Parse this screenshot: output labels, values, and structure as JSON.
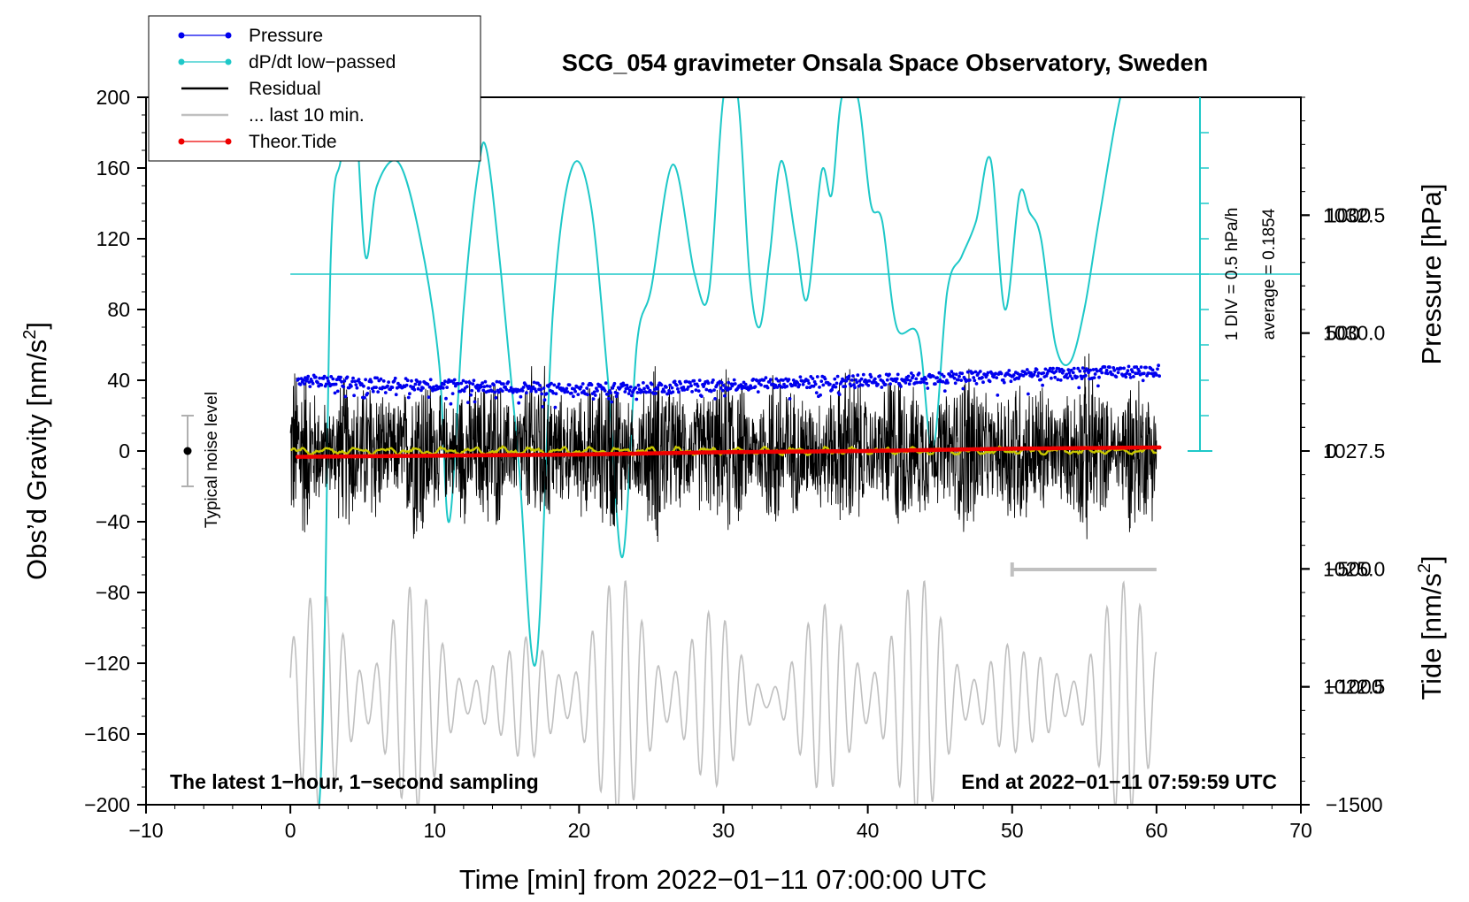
{
  "chart_data": {
    "type": "line",
    "title": "SCG_054 gravimeter Onsala Space Observatory, Sweden",
    "xlabel": "Time [min] from 2022−01−11 07:00:00 UTC",
    "ylabel_main": "Obs’d Gravity [nm/s",
    "ylabel_main_sup": "2",
    "ylabel_main_end": "]",
    "ylabel_pressure": "Pressure [hPa]",
    "ylabel_tide": "Tide [nm/s",
    "ylabel_tide_sup": "2",
    "ylabel_tide_end": "]",
    "xlim": [
      -10,
      70
    ],
    "ylim_main": [
      -200,
      200
    ],
    "ylim_pressure": [
      1020.0,
      1035.0
    ],
    "ylim_tide": [
      -1500,
      1500
    ],
    "x_ticks": [
      {
        "value": -10,
        "label": "−10"
      },
      {
        "value": 0,
        "label": "0"
      },
      {
        "value": 10,
        "label": "10"
      },
      {
        "value": 20,
        "label": "20"
      },
      {
        "value": 30,
        "label": "30"
      },
      {
        "value": 40,
        "label": "40"
      },
      {
        "value": 50,
        "label": "50"
      },
      {
        "value": 60,
        "label": "60"
      },
      {
        "value": 70,
        "label": "70"
      }
    ],
    "y_main_ticks": [
      {
        "value": 200,
        "label": "200"
      },
      {
        "value": 160,
        "label": "160"
      },
      {
        "value": 120,
        "label": "120"
      },
      {
        "value": 80,
        "label": "80"
      },
      {
        "value": 40,
        "label": "40"
      },
      {
        "value": 0,
        "label": "0"
      },
      {
        "value": -40,
        "label": "−40"
      },
      {
        "value": -80,
        "label": "−80"
      },
      {
        "value": -120,
        "label": "−120"
      },
      {
        "value": -160,
        "label": "−160"
      },
      {
        "value": -200,
        "label": "−200"
      }
    ],
    "y_pressure_ticks": [
      {
        "value": 1032.5,
        "label": "1032.5"
      },
      {
        "value": 1030.0,
        "label": "1030.0"
      },
      {
        "value": 1027.5,
        "label": "1027.5"
      },
      {
        "value": 1025.0,
        "label": "1025.0"
      },
      {
        "value": 1022.5,
        "label": "1022.5"
      }
    ],
    "y_tide_ticks": [
      {
        "value": 1000,
        "label": "1000"
      },
      {
        "value": 500,
        "label": "500"
      },
      {
        "value": 0,
        "label": "0"
      },
      {
        "value": -500,
        "label": "−500"
      },
      {
        "value": -1000,
        "label": "−1000"
      },
      {
        "value": -1500,
        "label": "−1500"
      }
    ],
    "legend": [
      {
        "label": "Pressure",
        "color": "#0000ee",
        "marker": true
      },
      {
        "label": "dP/dt low−passed",
        "color": "#1ec8c8",
        "marker": true
      },
      {
        "label": "Residual",
        "color": "#000000",
        "marker": false
      },
      {
        "label": "... last 10 min.",
        "color": "#c0c0c0",
        "marker": false
      },
      {
        "label": "Theor.Tide",
        "color": "#ee0000",
        "marker": true
      }
    ],
    "legend_position": "top-left",
    "annotations": {
      "left_note": "The latest 1−hour, 1−second sampling",
      "right_note": "End at 2022−01−11 07:59:59 UTC",
      "noise_label": "Typical noise level",
      "dpdt_scale": "1 DIV = 0.5 hPa/h",
      "dpdt_average": "average = 0.1854"
    },
    "series": [
      {
        "name": "Pressure",
        "color": "#0000ee",
        "axis": "pressure",
        "x": [
          0,
          10,
          20,
          30,
          40,
          50,
          60
        ],
        "values": [
          1029.0,
          1028.9,
          1028.8,
          1028.9,
          1029.0,
          1029.1,
          1029.2
        ]
      },
      {
        "name": "dP/dt low-passed",
        "color": "#1ec8c8",
        "axis": "main",
        "x": [
          0,
          2,
          2.8,
          3.5,
          4.4,
          5.2,
          6,
          7.5,
          9,
          10.3,
          11,
          12,
          13,
          13.6,
          14.6,
          15.8,
          17,
          18.2,
          19.5,
          20.8,
          22,
          23,
          24,
          25,
          26.5,
          28,
          29,
          30,
          31,
          31.8,
          32.5,
          33.2,
          34,
          35,
          35.8,
          36.8,
          37.5,
          38.2,
          39.3,
          40.2,
          41,
          42,
          43.5,
          44.5,
          45.5,
          46.5,
          47.5,
          48.5,
          49.5,
          50.5,
          51.2,
          52,
          53,
          54,
          55,
          56,
          57.5,
          58.2
        ],
        "values": [
          -200,
          -200,
          110,
          165,
          200,
          110,
          150,
          163,
          120,
          50,
          -40,
          80,
          158,
          170,
          100,
          -5,
          -120,
          80,
          160,
          140,
          40,
          -60,
          60,
          92,
          162,
          100,
          90,
          200,
          200,
          100,
          70,
          110,
          164,
          120,
          86,
          158,
          145,
          200,
          200,
          140,
          130,
          70,
          65,
          0,
          90,
          110,
          130,
          165,
          80,
          145,
          135,
          120,
          60,
          50,
          80,
          130,
          200,
          200
        ]
      },
      {
        "name": "Residual",
        "color": "#000000",
        "axis": "main",
        "x": [
          0,
          60
        ],
        "values": [
          0,
          0
        ],
        "amplitude": 60
      },
      {
        "name": "... last 10 min.",
        "color": "#c0c0c0",
        "axis": "main",
        "x": [
          0,
          60
        ],
        "values": [
          -140,
          -140
        ],
        "amplitude": 70
      },
      {
        "name": "Theor.Tide",
        "color": "#ee0000",
        "axis": "tide",
        "x": [
          0,
          10,
          20,
          30,
          40,
          50,
          60
        ],
        "values": [
          -25,
          -20,
          -15,
          -5,
          0,
          10,
          15
        ]
      }
    ]
  }
}
